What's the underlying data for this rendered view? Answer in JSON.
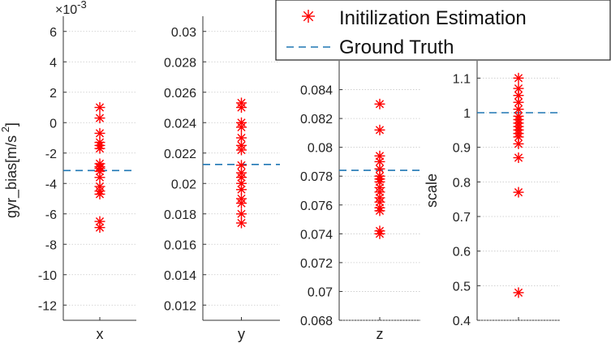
{
  "chart_data": [
    {
      "type": "scatter",
      "xlabel": "x",
      "ylabel": "gyr_bias[m/s",
      "ylabel_sup": "2",
      "ylabel_close": "]",
      "exponent_label": "×10",
      "exponent_power": "-3",
      "ylim": [
        -13,
        7
      ],
      "yticks": [
        6,
        4,
        2,
        0,
        -2,
        -4,
        -6,
        -8,
        -10,
        -12
      ],
      "ytick_labels": [
        "6",
        "4",
        "2",
        "0",
        "-2",
        "-4",
        "-6",
        "-8",
        "-10",
        "-12"
      ],
      "grid": true,
      "ground_truth": -3.15,
      "estimates": [
        1.0,
        0.3,
        -0.7,
        -1.3,
        -1.5,
        -1.7,
        -2.7,
        -2.9,
        -3.0,
        -3.2,
        -3.6,
        -4.2,
        -4.5,
        -4.7,
        -6.5,
        -6.9
      ]
    },
    {
      "type": "scatter",
      "xlabel": "y",
      "ylabel": "",
      "ylim": [
        0.011,
        0.031
      ],
      "yticks": [
        0.03,
        0.028,
        0.026,
        0.024,
        0.022,
        0.02,
        0.018,
        0.016,
        0.014,
        0.012
      ],
      "ytick_labels": [
        "0.03",
        "0.028",
        "0.026",
        "0.024",
        "0.022",
        "0.02",
        "0.018",
        "0.016",
        "0.014",
        "0.012"
      ],
      "grid": true,
      "ground_truth": 0.02125,
      "estimates": [
        0.0253,
        0.025,
        0.024,
        0.0237,
        0.023,
        0.0225,
        0.0222,
        0.0212,
        0.0207,
        0.0204,
        0.02,
        0.0196,
        0.019,
        0.0187,
        0.018,
        0.0174
      ]
    },
    {
      "type": "scatter",
      "xlabel": "z",
      "ylabel": "",
      "ylim": [
        0.068,
        0.086
      ],
      "yticks": [
        0.084,
        0.082,
        0.08,
        0.078,
        0.076,
        0.074,
        0.072,
        0.07,
        0.068
      ],
      "ytick_labels": [
        "0.084",
        "0.082",
        "0.08",
        "0.078",
        "0.076",
        "0.074",
        "0.072",
        "0.07",
        "0.068"
      ],
      "grid": true,
      "ground_truth": 0.0784,
      "estimates": [
        0.083,
        0.0812,
        0.0794,
        0.079,
        0.0785,
        0.078,
        0.0778,
        0.0776,
        0.0772,
        0.0769,
        0.0765,
        0.0762,
        0.0758,
        0.0756,
        0.0742,
        0.074
      ]
    },
    {
      "type": "scatter",
      "xlabel": "",
      "ylabel": "scale",
      "ylim": [
        0.4,
        1.15
      ],
      "yticks": [
        1.1,
        1.0,
        0.9,
        0.8,
        0.7,
        0.6,
        0.5,
        0.4
      ],
      "ytick_labels": [
        "1.1",
        "1",
        "0.9",
        "0.8",
        "0.7",
        "0.6",
        "0.5",
        "0.4"
      ],
      "grid": true,
      "ground_truth": 1.0,
      "estimates": [
        1.1,
        1.07,
        1.05,
        1.03,
        1.01,
        0.99,
        0.98,
        0.97,
        0.96,
        0.95,
        0.94,
        0.93,
        0.91,
        0.87,
        0.77,
        0.48
      ]
    }
  ],
  "legend": {
    "entries": [
      {
        "label": "Initilization Estimation",
        "marker": "asterisk",
        "color": "#ff0000"
      },
      {
        "label": "Ground Truth",
        "marker": "dashed-line",
        "color": "#1f77b4"
      }
    ]
  },
  "colors": {
    "estimate": "#ff0000",
    "ground_truth": "#1f77b4",
    "grid": "#c8c8c8",
    "axis": "#333333"
  }
}
